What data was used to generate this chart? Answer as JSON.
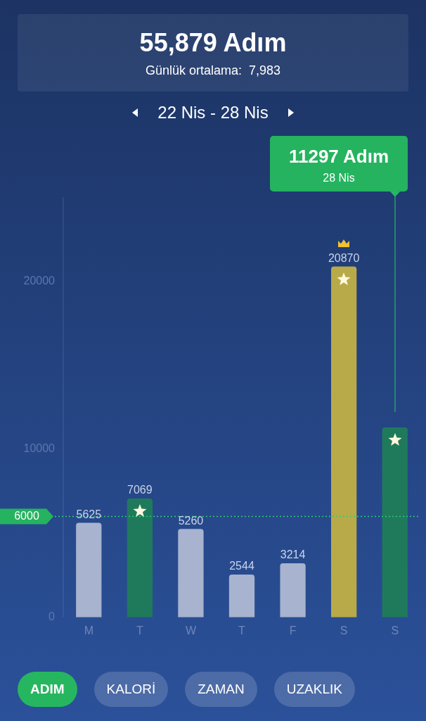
{
  "chart_data": {
    "type": "bar",
    "title": "55,879 Adım",
    "subtitle": "Günlük ortalama:  7,983",
    "categories": [
      "M",
      "T",
      "W",
      "T",
      "F",
      "S",
      "S"
    ],
    "values": [
      5625,
      7069,
      5260,
      2544,
      3214,
      20870,
      11297
    ],
    "colors": [
      "#a7b3cf",
      "#1f7a5c",
      "#a7b3cf",
      "#a7b3cf",
      "#a7b3cf",
      "#b8aa48",
      "#1f7a5c"
    ],
    "value_labels": [
      "5625",
      "7069",
      "5260",
      "2544",
      "3214",
      "20870",
      null
    ],
    "ylim": [
      0,
      25000
    ],
    "yticks": [
      0,
      10000,
      20000
    ],
    "grid": false,
    "legend": false,
    "ref_lines": [
      {
        "axis": "y",
        "value": 6000,
        "label": "6000",
        "color": "#2ecc71",
        "line_style": "dotted"
      }
    ],
    "annotations": [
      "22 Nis - 28 Nis",
      "11297 Adım",
      "28 Nis",
      "ADIM",
      "KALORİ",
      "ZAMAN",
      "UZAKLIK"
    ]
  }
}
